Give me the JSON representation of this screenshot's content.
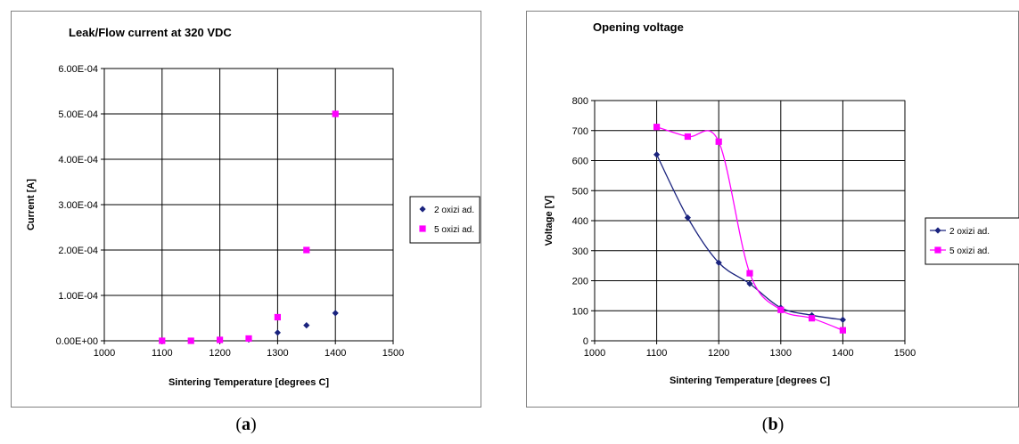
{
  "captions": {
    "a_open": "(",
    "a_letter": "a",
    "a_close": ")",
    "b_open": "(",
    "b_letter": "b",
    "b_close": ")"
  },
  "chart_data": [
    {
      "type": "scatter",
      "title": "Leak/Flow  current at 320  VDC",
      "xlabel": "Sintering Temperature [degrees C]",
      "ylabel": "Current [A]",
      "xlim": [
        1000,
        1500
      ],
      "ylim": [
        0,
        0.0006
      ],
      "xticks": [
        1000,
        1100,
        1200,
        1300,
        1400,
        1500
      ],
      "xtick_labels": [
        "1000",
        "1100",
        "1200",
        "1300",
        "1400",
        "1500"
      ],
      "yticks": [
        0,
        0.0001,
        0.0002,
        0.0003,
        0.0004,
        0.0005,
        0.0006
      ],
      "ytick_labels": [
        "0.00E+00",
        "1.00E-04",
        "2.00E-04",
        "3.00E-04",
        "4.00E-04",
        "5.00E-04",
        "6.00E-04"
      ],
      "grid": true,
      "legend_position": "right",
      "series": [
        {
          "name": "2 oxizi ad.",
          "color": "#1a237e",
          "marker": "diamond",
          "x": [
            1100,
            1150,
            1200,
            1250,
            1300,
            1350,
            1400
          ],
          "y": [
            0,
            0,
            1e-06,
            3e-06,
            1.8e-05,
            3.4e-05,
            6.1e-05
          ]
        },
        {
          "name": "5 oxizi ad.",
          "color": "#ff00ff",
          "marker": "square",
          "x": [
            1100,
            1150,
            1200,
            1250,
            1300,
            1350,
            1400
          ],
          "y": [
            0,
            0,
            2e-06,
            5e-06,
            5.2e-05,
            0.0002,
            0.0005
          ]
        }
      ]
    },
    {
      "type": "line",
      "title": "Opening voltage",
      "xlabel": "Sintering Temperature [degrees C]",
      "ylabel": "Voltage [V]",
      "xlim": [
        1000,
        1500
      ],
      "ylim": [
        0,
        800
      ],
      "xticks": [
        1000,
        1100,
        1200,
        1300,
        1400,
        1500
      ],
      "xtick_labels": [
        "1000",
        "1100",
        "1200",
        "1300",
        "1400",
        "1500"
      ],
      "yticks": [
        0,
        100,
        200,
        300,
        400,
        500,
        600,
        700,
        800
      ],
      "ytick_labels": [
        "0",
        "100",
        "200",
        "300",
        "400",
        "500",
        "600",
        "700",
        "800"
      ],
      "grid": true,
      "legend_position": "right",
      "series": [
        {
          "name": "2 oxizi ad.",
          "color": "#1a237e",
          "marker": "diamond",
          "x": [
            1100,
            1150,
            1200,
            1250,
            1300,
            1350,
            1400
          ],
          "y": [
            620,
            410,
            260,
            190,
            110,
            85,
            70
          ]
        },
        {
          "name": "5 oxizi ad.",
          "color": "#ff00ff",
          "marker": "square",
          "x": [
            1100,
            1150,
            1200,
            1250,
            1300,
            1350,
            1400
          ],
          "y": [
            712,
            680,
            663,
            225,
            103,
            75,
            35
          ]
        }
      ]
    }
  ]
}
